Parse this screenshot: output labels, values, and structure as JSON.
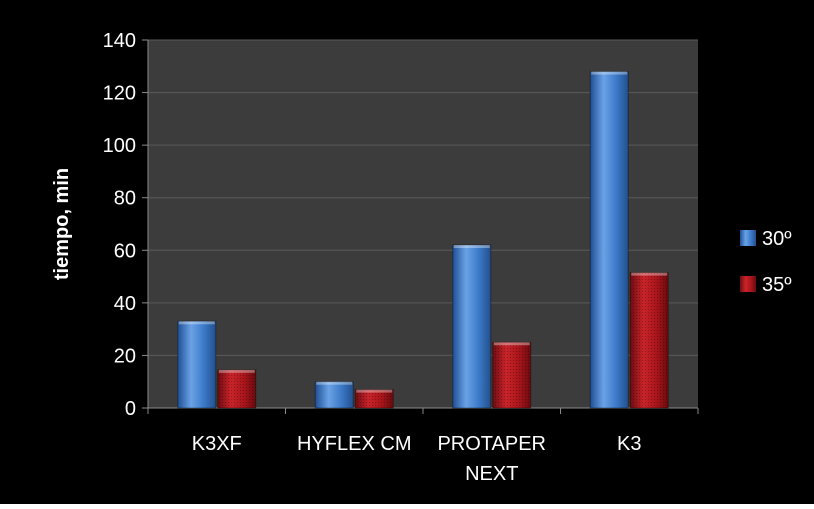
{
  "chart_data": {
    "type": "bar",
    "categories": [
      "K3XF",
      "HYFLEX CM",
      "PROTAPER\nNEXT",
      "K3"
    ],
    "series": [
      {
        "name": "30º",
        "values": [
          33,
          10,
          62,
          128
        ],
        "color": "#3a78c6"
      },
      {
        "name": "35º",
        "values": [
          14.5,
          7,
          25,
          51.5
        ],
        "color": "#a8151a"
      }
    ],
    "ylabel": "tiempo, min",
    "ylim": [
      0,
      140
    ],
    "yticks": [
      0,
      20,
      40,
      60,
      80,
      100,
      120,
      140
    ],
    "grid": true,
    "legend": "right",
    "background": "#000000",
    "plot_background": "#3c3c3c",
    "gridline_color": "#5a5a5a",
    "text_color": "#ffffff"
  }
}
